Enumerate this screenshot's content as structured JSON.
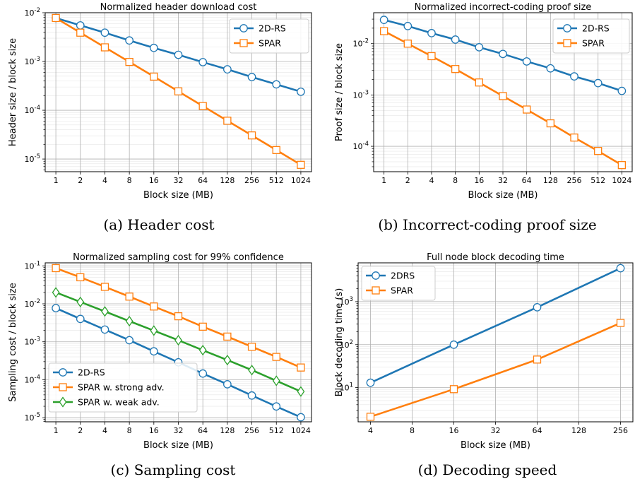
{
  "chart_data": [
    {
      "type": "line",
      "title": "Normalized header download cost",
      "xlabel": "Block size (MB)",
      "ylabel": "Header size / block size",
      "yscale": "log",
      "ylim": [
        5.5e-06,
        0.01
      ],
      "grid": true,
      "legend_position": "top-right",
      "categories": [
        "1",
        "2",
        "4",
        "8",
        "16",
        "32",
        "64",
        "128",
        "256",
        "512",
        "1024"
      ],
      "yticks": [
        {
          "value": 0.01,
          "label": "10^-2"
        },
        {
          "value": 0.001,
          "label": "10^-3"
        },
        {
          "value": 0.0001,
          "label": "10^-4"
        },
        {
          "value": 1e-05,
          "label": "10^-5"
        }
      ],
      "caption": "(a) Header cost",
      "series": [
        {
          "name": "2D-RS",
          "color": "#1f77b4",
          "marker": "circle",
          "values": [
            0.0078,
            0.0055,
            0.0039,
            0.0027,
            0.0019,
            0.00137,
            0.00097,
            0.00069,
            0.00048,
            0.00034,
            0.00024
          ]
        },
        {
          "name": "SPAR",
          "color": "#ff7f0e",
          "marker": "square",
          "values": [
            0.0078,
            0.0039,
            0.00195,
            0.00098,
            0.00049,
            0.000244,
            0.000122,
            6.1e-05,
            3.05e-05,
            1.53e-05,
            7.6e-06
          ]
        }
      ]
    },
    {
      "type": "line",
      "title": "Normalized incorrect-coding proof size",
      "xlabel": "Block size (MB)",
      "ylabel": "Proof size / block size",
      "yscale": "log",
      "ylim": [
        3.2e-05,
        0.04
      ],
      "grid": true,
      "legend_position": "top-right",
      "categories": [
        "1",
        "2",
        "4",
        "8",
        "16",
        "32",
        "64",
        "128",
        "256",
        "512",
        "1024"
      ],
      "yticks": [
        {
          "value": 0.01,
          "label": "10^-2"
        },
        {
          "value": 0.001,
          "label": "10^-3"
        },
        {
          "value": 0.0001,
          "label": "10^-4"
        }
      ],
      "caption": "(b) Incorrect-coding proof size",
      "series": [
        {
          "name": "2D-RS",
          "color": "#1f77b4",
          "marker": "circle",
          "values": [
            0.029,
            0.022,
            0.016,
            0.012,
            0.0085,
            0.0063,
            0.0045,
            0.0033,
            0.0023,
            0.0017,
            0.0012
          ]
        },
        {
          "name": "SPAR",
          "color": "#ff7f0e",
          "marker": "square",
          "values": [
            0.0175,
            0.01,
            0.0057,
            0.0032,
            0.00175,
            0.00095,
            0.00052,
            0.00028,
            0.000148,
            8.1e-05,
            4.3e-05
          ]
        }
      ]
    },
    {
      "type": "line",
      "title": "Normalized sampling cost for 99% confidence",
      "xlabel": "Block size (MB)",
      "ylabel": "Sampling cost / block size",
      "yscale": "log",
      "ylim": [
        7.8e-06,
        0.12
      ],
      "grid": true,
      "legend_position": "lower-left",
      "categories": [
        "1",
        "2",
        "4",
        "8",
        "16",
        "32",
        "64",
        "128",
        "256",
        "512",
        "1024"
      ],
      "yticks": [
        {
          "value": 0.1,
          "label": "10^-1"
        },
        {
          "value": 0.01,
          "label": "10^-2"
        },
        {
          "value": 0.001,
          "label": "10^-3"
        },
        {
          "value": 0.0001,
          "label": "10^-4"
        },
        {
          "value": 1e-05,
          "label": "10^-5"
        }
      ],
      "caption": "(c) Sampling cost",
      "series": [
        {
          "name": "2D-RS",
          "color": "#1f77b4",
          "marker": "circle",
          "values": [
            0.0077,
            0.004,
            0.0021,
            0.0011,
            0.00056,
            0.000288,
            0.000146,
            7.6e-05,
            3.85e-05,
            1.98e-05,
            1.03e-05
          ]
        },
        {
          "name": "SPAR w. strong adv.",
          "color": "#ff7f0e",
          "marker": "square",
          "values": [
            0.087,
            0.05,
            0.028,
            0.0155,
            0.0085,
            0.0047,
            0.0025,
            0.00137,
            0.00074,
            0.0004,
            0.00021
          ]
        },
        {
          "name": "SPAR w. weak adv.",
          "color": "#2ca02c",
          "marker": "diamond",
          "values": [
            0.02,
            0.0112,
            0.0063,
            0.0035,
            0.00197,
            0.0011,
            0.0006,
            0.00033,
            0.00018,
            9.4e-05,
            4.9e-05
          ]
        }
      ]
    },
    {
      "type": "line",
      "title": "Full node block decoding time",
      "xlabel": "Block size (MB)",
      "ylabel": "Block decoding time (s)",
      "yscale": "log",
      "xscale": "log2",
      "ylim": [
        1.6,
        8000
      ],
      "grid": true,
      "legend_position": "top-left",
      "x": [
        4,
        16,
        64,
        256
      ],
      "xticks": [
        {
          "value": 4,
          "label": "4"
        },
        {
          "value": 8,
          "label": "8"
        },
        {
          "value": 16,
          "label": "16"
        },
        {
          "value": 32,
          "label": "32"
        },
        {
          "value": 64,
          "label": "64"
        },
        {
          "value": 128,
          "label": "128"
        },
        {
          "value": 256,
          "label": "256"
        }
      ],
      "yticks": [
        {
          "value": 10,
          "label": "10^1"
        },
        {
          "value": 100,
          "label": "10^2"
        },
        {
          "value": 1000,
          "label": "10^3"
        }
      ],
      "caption": "(d) Decoding speed",
      "series": [
        {
          "name": "2DRS",
          "color": "#1f77b4",
          "marker": "circle",
          "values": [
            13,
            100,
            740,
            6000
          ]
        },
        {
          "name": "SPAR",
          "color": "#ff7f0e",
          "marker": "square",
          "values": [
            2.1,
            9.2,
            45,
            320
          ]
        }
      ]
    }
  ]
}
